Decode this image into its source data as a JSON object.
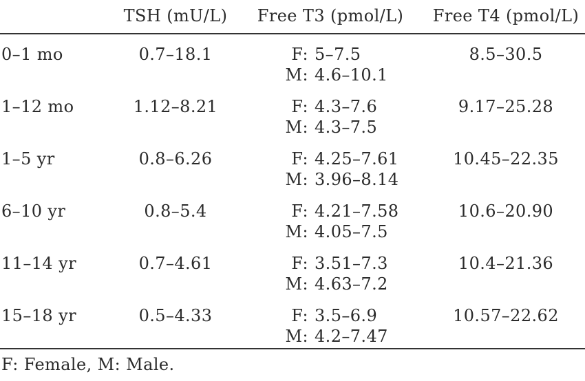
{
  "table": {
    "columns": [
      "",
      "TSH (mU/L)",
      "Free T3 (pmol/L)",
      "Free T4 (pmol/L)"
    ],
    "sex_labels": {
      "f": "F:",
      "m": "M:"
    },
    "rows": [
      {
        "age": "0–1 mo",
        "tsh": "0.7–18.1",
        "t3_f": "5–7.5",
        "t3_m": "4.6–10.1",
        "t4": "8.5–30.5"
      },
      {
        "age": "1–12 mo",
        "tsh": "1.12–8.21",
        "t3_f": "4.3–7.6",
        "t3_m": "4.3–7.5",
        "t4": "9.17–25.28"
      },
      {
        "age": "1–5 yr",
        "tsh": "0.8–6.26",
        "t3_f": "4.25–7.61",
        "t3_m": "3.96–8.14",
        "t4": "10.45–22.35"
      },
      {
        "age": "6–10 yr",
        "tsh": "0.8–5.4",
        "t3_f": "4.21–7.58",
        "t3_m": "4.05–7.5",
        "t4": "10.6–20.90"
      },
      {
        "age": "11–14 yr",
        "tsh": "0.7–4.61",
        "t3_f": "3.51–7.3",
        "t3_m": "4.63–7.2",
        "t4": "10.4–21.36"
      },
      {
        "age": "15–18 yr",
        "tsh": "0.5–4.33",
        "t3_f": "3.5–6.9",
        "t3_m": "4.2–7.47",
        "t4": "10.57–22.62"
      }
    ],
    "footnote": "F: Female, M: Male."
  }
}
